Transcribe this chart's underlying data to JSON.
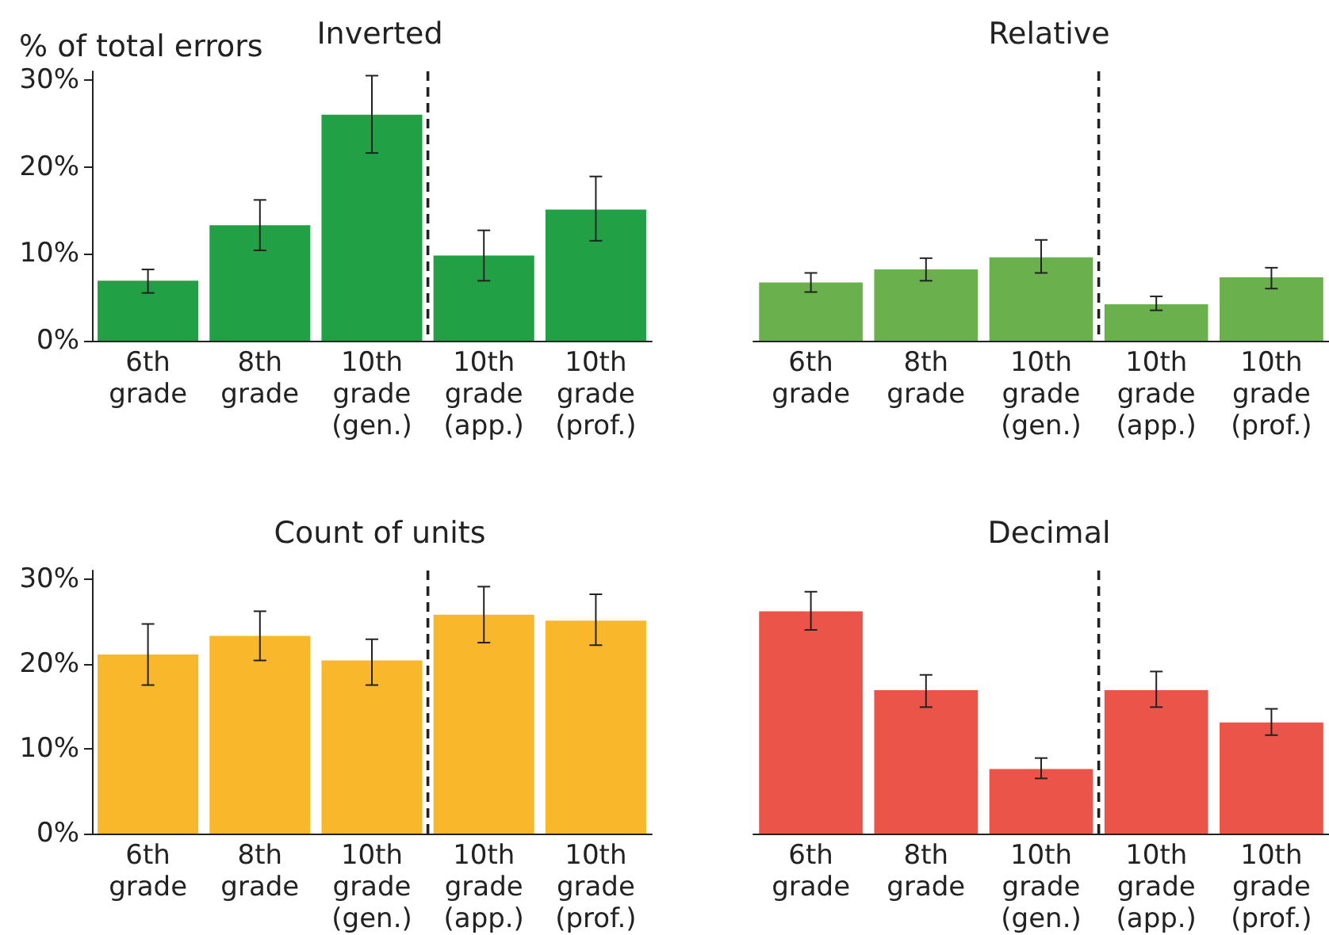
{
  "chart_data": [
    {
      "type": "bar",
      "title": "Inverted",
      "ylabel": "% of total errors",
      "categories": [
        "6th grade",
        "8th grade",
        "10th grade (gen.)",
        "10th grade (app.)",
        "10th grade (prof.)"
      ],
      "values": [
        6.9,
        13.3,
        26,
        9.8,
        15.1
      ],
      "color": "#22a045",
      "errors": [
        [
          5.5,
          8.2
        ],
        [
          10.4,
          16.2
        ],
        [
          21.6,
          30.5
        ],
        [
          6.9,
          12.7
        ],
        [
          11.5,
          18.9
        ]
      ],
      "ylim": [
        0,
        31
      ],
      "yticks": [
        {
          "value": 0,
          "label": "0%"
        },
        {
          "value": 10,
          "label": "10%"
        },
        {
          "value": 20,
          "label": "20%"
        },
        {
          "value": 30,
          "label": "30%"
        }
      ],
      "grid": false
    },
    {
      "type": "bar",
      "title": "Relative",
      "categories": [
        "6th grade",
        "8th grade",
        "10th grade (gen.)",
        "10th grade (app.)",
        "10th grade (prof.)"
      ],
      "values": [
        6.7,
        8.2,
        9.6,
        4.2,
        7.3
      ],
      "color": "#6ab04c",
      "errors": [
        [
          5.6,
          7.8
        ],
        [
          6.9,
          9.5
        ],
        [
          7.8,
          11.6
        ],
        [
          3.5,
          5.1
        ],
        [
          6.0,
          8.4
        ]
      ],
      "ylim": [
        0,
        31
      ],
      "tick_labels": "x",
      "grid": false
    },
    {
      "type": "bar",
      "title": "Count of units",
      "categories": [
        "6th grade",
        "8th grade",
        "10th grade (gen.)",
        "10th grade (app.)",
        "10th grade (prof.)"
      ],
      "values": [
        21.1,
        23.3,
        20.4,
        25.8,
        25.1
      ],
      "color": "#f9b72b",
      "errors": [
        [
          17.5,
          24.7
        ],
        [
          20.4,
          26.2
        ],
        [
          17.5,
          22.9
        ],
        [
          22.5,
          29.1
        ],
        [
          22.2,
          28.2
        ]
      ],
      "ylim": [
        0,
        31
      ],
      "yticks": [
        {
          "value": 0,
          "label": "0%"
        },
        {
          "value": 10,
          "label": "10%"
        },
        {
          "value": 20,
          "label": "20%"
        },
        {
          "value": 30,
          "label": "30%"
        }
      ],
      "grid": false
    },
    {
      "type": "bar",
      "title": "Decimal",
      "categories": [
        "6th grade",
        "8th grade",
        "10th grade (gen.)",
        "10th grade (app.)",
        "10th grade (prof.)"
      ],
      "values": [
        26.2,
        16.9,
        7.6,
        16.9,
        13.1
      ],
      "color": "#eb5549",
      "errors": [
        [
          24,
          28.5
        ],
        [
          14.9,
          18.7
        ],
        [
          6.5,
          8.9
        ],
        [
          14.9,
          19.1
        ],
        [
          11.6,
          14.7
        ]
      ],
      "ylim": [
        0,
        31
      ],
      "tick_labels": "x",
      "grid": false
    }
  ]
}
